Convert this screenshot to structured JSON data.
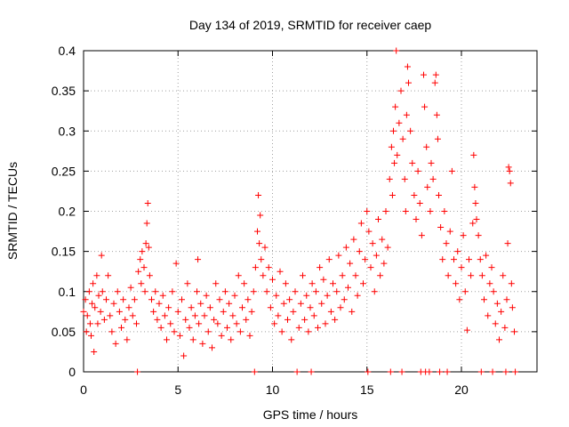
{
  "chart_data": {
    "type": "scatter",
    "title": "Day 134 of 2019, SRMTID for receiver caep",
    "xlabel": "GPS time / hours",
    "ylabel": "SRMTID / TECUs",
    "xlim": [
      0,
      24
    ],
    "ylim": [
      0,
      0.4
    ],
    "x_ticks": [
      0,
      5,
      10,
      15,
      20
    ],
    "x_tick_labels": [
      "0",
      "5",
      "10",
      "15",
      "20"
    ],
    "y_ticks": [
      0,
      0.05,
      0.1,
      0.15,
      0.2,
      0.25,
      0.3,
      0.35,
      0.4
    ],
    "y_tick_labels": [
      "0",
      "0.05",
      "0.1",
      "0.15",
      "0.2",
      "0.25",
      "0.3",
      "0.35",
      "0.4"
    ],
    "grid": true,
    "marker": "+",
    "color": "#ff0000",
    "series": [
      {
        "name": "SRMTID",
        "points": [
          [
            0.0,
            0.075
          ],
          [
            0.1,
            0.09
          ],
          [
            0.15,
            0.05
          ],
          [
            0.2,
            0.07
          ],
          [
            0.3,
            0.1
          ],
          [
            0.35,
            0.06
          ],
          [
            0.4,
            0.045
          ],
          [
            0.45,
            0.085
          ],
          [
            0.5,
            0.11
          ],
          [
            0.55,
            0.025
          ],
          [
            0.6,
            0.08
          ],
          [
            0.7,
            0.12
          ],
          [
            0.75,
            0.06
          ],
          [
            0.8,
            0.095
          ],
          [
            0.9,
            0.075
          ],
          [
            0.95,
            0.145
          ],
          [
            1.0,
            0.1
          ],
          [
            1.1,
            0.065
          ],
          [
            1.2,
            0.09
          ],
          [
            1.3,
            0.12
          ],
          [
            1.4,
            0.07
          ],
          [
            1.5,
            0.05
          ],
          [
            1.6,
            0.085
          ],
          [
            1.7,
            0.035
          ],
          [
            1.8,
            0.1
          ],
          [
            1.9,
            0.075
          ],
          [
            2.0,
            0.055
          ],
          [
            2.1,
            0.09
          ],
          [
            2.2,
            0.065
          ],
          [
            2.3,
            0.04
          ],
          [
            2.4,
            0.08
          ],
          [
            2.5,
            0.105
          ],
          [
            2.6,
            0.07
          ],
          [
            2.7,
            0.09
          ],
          [
            2.8,
            0.06
          ],
          [
            2.85,
            0.0
          ],
          [
            2.9,
            0.125
          ],
          [
            3.0,
            0.14
          ],
          [
            3.05,
            0.11
          ],
          [
            3.1,
            0.15
          ],
          [
            3.2,
            0.13
          ],
          [
            3.25,
            0.1
          ],
          [
            3.3,
            0.16
          ],
          [
            3.35,
            0.185
          ],
          [
            3.4,
            0.21
          ],
          [
            3.45,
            0.155
          ],
          [
            3.5,
            0.12
          ],
          [
            3.6,
            0.09
          ],
          [
            3.7,
            0.075
          ],
          [
            3.8,
            0.1
          ],
          [
            3.9,
            0.065
          ],
          [
            4.0,
            0.085
          ],
          [
            4.1,
            0.055
          ],
          [
            4.2,
            0.095
          ],
          [
            4.3,
            0.07
          ],
          [
            4.4,
            0.04
          ],
          [
            4.5,
            0.08
          ],
          [
            4.6,
            0.06
          ],
          [
            4.7,
            0.1
          ],
          [
            4.8,
            0.05
          ],
          [
            4.9,
            0.135
          ],
          [
            5.0,
            0.075
          ],
          [
            5.1,
            0.045
          ],
          [
            5.2,
            0.09
          ],
          [
            5.3,
            0.02
          ],
          [
            5.4,
            0.065
          ],
          [
            5.5,
            0.11
          ],
          [
            5.6,
            0.055
          ],
          [
            5.7,
            0.08
          ],
          [
            5.8,
            0.04
          ],
          [
            5.9,
            0.07
          ],
          [
            6.0,
            0.1
          ],
          [
            6.05,
            0.14
          ],
          [
            6.1,
            0.06
          ],
          [
            6.2,
            0.085
          ],
          [
            6.3,
            0.035
          ],
          [
            6.4,
            0.07
          ],
          [
            6.5,
            0.095
          ],
          [
            6.6,
            0.05
          ],
          [
            6.7,
            0.08
          ],
          [
            6.8,
            0.03
          ],
          [
            6.9,
            0.065
          ],
          [
            7.0,
            0.11
          ],
          [
            7.1,
            0.06
          ],
          [
            7.2,
            0.09
          ],
          [
            7.3,
            0.045
          ],
          [
            7.4,
            0.075
          ],
          [
            7.5,
            0.1
          ],
          [
            7.6,
            0.055
          ],
          [
            7.7,
            0.085
          ],
          [
            7.8,
            0.04
          ],
          [
            7.9,
            0.07
          ],
          [
            8.0,
            0.095
          ],
          [
            8.1,
            0.06
          ],
          [
            8.2,
            0.12
          ],
          [
            8.3,
            0.05
          ],
          [
            8.4,
            0.08
          ],
          [
            8.5,
            0.11
          ],
          [
            8.6,
            0.065
          ],
          [
            8.7,
            0.09
          ],
          [
            8.8,
            0.045
          ],
          [
            8.9,
            0.075
          ],
          [
            9.0,
            0.1
          ],
          [
            9.05,
            0.0
          ],
          [
            9.1,
            0.13
          ],
          [
            9.2,
            0.175
          ],
          [
            9.25,
            0.22
          ],
          [
            9.3,
            0.16
          ],
          [
            9.35,
            0.195
          ],
          [
            9.4,
            0.14
          ],
          [
            9.5,
            0.12
          ],
          [
            9.6,
            0.155
          ],
          [
            9.7,
            0.1
          ],
          [
            9.8,
            0.13
          ],
          [
            9.9,
            0.08
          ],
          [
            10.0,
            0.115
          ],
          [
            10.1,
            0.06
          ],
          [
            10.2,
            0.095
          ],
          [
            10.3,
            0.07
          ],
          [
            10.4,
            0.125
          ],
          [
            10.5,
            0.05
          ],
          [
            10.6,
            0.085
          ],
          [
            10.7,
            0.11
          ],
          [
            10.8,
            0.065
          ],
          [
            10.9,
            0.09
          ],
          [
            11.0,
            0.04
          ],
          [
            11.1,
            0.075
          ],
          [
            11.2,
            0.1
          ],
          [
            11.3,
            0.0
          ],
          [
            11.4,
            0.055
          ],
          [
            11.5,
            0.085
          ],
          [
            11.6,
            0.12
          ],
          [
            11.7,
            0.065
          ],
          [
            11.8,
            0.095
          ],
          [
            11.9,
            0.05
          ],
          [
            12.0,
            0.08
          ],
          [
            12.05,
            0.0
          ],
          [
            12.1,
            0.11
          ],
          [
            12.2,
            0.07
          ],
          [
            12.3,
            0.1
          ],
          [
            12.4,
            0.055
          ],
          [
            12.5,
            0.13
          ],
          [
            12.6,
            0.085
          ],
          [
            12.7,
            0.115
          ],
          [
            12.8,
            0.06
          ],
          [
            12.9,
            0.095
          ],
          [
            13.0,
            0.14
          ],
          [
            13.1,
            0.075
          ],
          [
            13.2,
            0.11
          ],
          [
            13.3,
            0.065
          ],
          [
            13.4,
            0.1
          ],
          [
            13.5,
            0.145
          ],
          [
            13.6,
            0.08
          ],
          [
            13.7,
            0.12
          ],
          [
            13.8,
            0.09
          ],
          [
            13.9,
            0.155
          ],
          [
            14.0,
            0.105
          ],
          [
            14.1,
            0.135
          ],
          [
            14.2,
            0.075
          ],
          [
            14.3,
            0.165
          ],
          [
            14.4,
            0.12
          ],
          [
            14.5,
            0.095
          ],
          [
            14.6,
            0.15
          ],
          [
            14.7,
            0.185
          ],
          [
            14.8,
            0.11
          ],
          [
            14.9,
            0.14
          ],
          [
            15.0,
            0.2
          ],
          [
            15.05,
            0.0
          ],
          [
            15.1,
            0.175
          ],
          [
            15.2,
            0.13
          ],
          [
            15.3,
            0.16
          ],
          [
            15.4,
            0.1
          ],
          [
            15.5,
            0.145
          ],
          [
            15.6,
            0.19
          ],
          [
            15.7,
            0.12
          ],
          [
            15.8,
            0.165
          ],
          [
            15.9,
            0.135
          ],
          [
            16.0,
            0.2
          ],
          [
            16.1,
            0.155
          ],
          [
            16.2,
            0.24
          ],
          [
            16.25,
            0.0
          ],
          [
            16.3,
            0.28
          ],
          [
            16.35,
            0.22
          ],
          [
            16.4,
            0.3
          ],
          [
            16.45,
            0.26
          ],
          [
            16.5,
            0.33
          ],
          [
            16.55,
            0.4
          ],
          [
            16.6,
            0.27
          ],
          [
            16.7,
            0.31
          ],
          [
            16.8,
            0.35
          ],
          [
            16.85,
            0.0
          ],
          [
            16.9,
            0.29
          ],
          [
            17.0,
            0.24
          ],
          [
            17.05,
            0.2
          ],
          [
            17.1,
            0.32
          ],
          [
            17.15,
            0.38
          ],
          [
            17.2,
            0.36
          ],
          [
            17.3,
            0.3
          ],
          [
            17.4,
            0.26
          ],
          [
            17.5,
            0.22
          ],
          [
            17.6,
            0.19
          ],
          [
            17.7,
            0.25
          ],
          [
            17.8,
            0.21
          ],
          [
            17.85,
            0.0
          ],
          [
            17.9,
            0.17
          ],
          [
            18.0,
            0.37
          ],
          [
            18.05,
            0.33
          ],
          [
            18.1,
            0.0
          ],
          [
            18.15,
            0.28
          ],
          [
            18.2,
            0.23
          ],
          [
            18.3,
            0.0
          ],
          [
            18.35,
            0.2
          ],
          [
            18.4,
            0.26
          ],
          [
            18.5,
            0.24
          ],
          [
            18.6,
            0.36
          ],
          [
            18.65,
            0.37
          ],
          [
            18.7,
            0.32
          ],
          [
            18.75,
            0.29
          ],
          [
            18.8,
            0.22
          ],
          [
            18.85,
            0.0
          ],
          [
            18.9,
            0.18
          ],
          [
            19.0,
            0.14
          ],
          [
            19.1,
            0.2
          ],
          [
            19.2,
            0.16
          ],
          [
            19.25,
            0.0
          ],
          [
            19.3,
            0.12
          ],
          [
            19.4,
            0.175
          ],
          [
            19.5,
            0.25
          ],
          [
            19.6,
            0.14
          ],
          [
            19.7,
            0.11
          ],
          [
            19.8,
            0.15
          ],
          [
            19.9,
            0.09
          ],
          [
            20.0,
            0.13
          ],
          [
            20.1,
            0.17
          ],
          [
            20.2,
            0.1
          ],
          [
            20.3,
            0.052
          ],
          [
            20.4,
            0.14
          ],
          [
            20.5,
            0.12
          ],
          [
            20.6,
            0.185
          ],
          [
            20.65,
            0.27
          ],
          [
            20.7,
            0.23
          ],
          [
            20.75,
            0.21
          ],
          [
            20.8,
            0.19
          ],
          [
            20.9,
            0.17
          ],
          [
            21.0,
            0.14
          ],
          [
            21.05,
            0.0
          ],
          [
            21.1,
            0.12
          ],
          [
            21.2,
            0.09
          ],
          [
            21.3,
            0.145
          ],
          [
            21.4,
            0.07
          ],
          [
            21.5,
            0.11
          ],
          [
            21.6,
            0.13
          ],
          [
            21.65,
            0.0
          ],
          [
            21.7,
            0.1
          ],
          [
            21.8,
            0.06
          ],
          [
            21.9,
            0.085
          ],
          [
            22.0,
            0.04
          ],
          [
            22.1,
            0.075
          ],
          [
            22.2,
            0.12
          ],
          [
            22.3,
            0.055
          ],
          [
            22.35,
            0.0
          ],
          [
            22.4,
            0.09
          ],
          [
            22.45,
            0.16
          ],
          [
            22.5,
            0.255
          ],
          [
            22.55,
            0.25
          ],
          [
            22.6,
            0.235
          ],
          [
            22.65,
            0.11
          ],
          [
            22.7,
            0.08
          ],
          [
            22.8,
            0.05
          ],
          [
            22.85,
            0.0
          ]
        ]
      }
    ]
  }
}
